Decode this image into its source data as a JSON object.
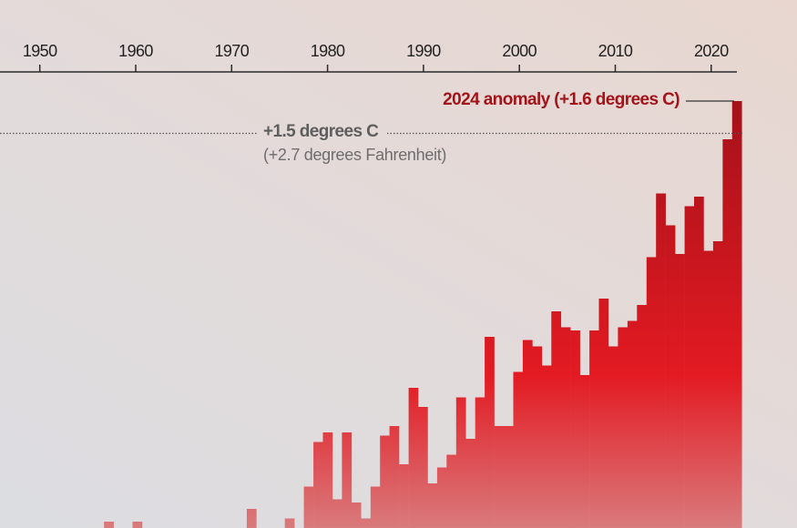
{
  "chart_data": {
    "type": "bar",
    "title": "",
    "xlabel": "",
    "ylabel": "",
    "x_ticks": [
      1950,
      1960,
      1970,
      1980,
      1990,
      2000,
      2010,
      2020
    ],
    "ylim": [
      0.26,
      1.92
    ],
    "grid": false,
    "legend": "none",
    "colors": {
      "bar_top": "#a3111a",
      "bar_mid": "#e31a22",
      "bar_bottom": "#d97a7c",
      "annotation_red": "#a3141a",
      "reference_gray": "#5e5e5e"
    },
    "x": [
      1958,
      1961,
      1969,
      1973,
      1977,
      1979,
      1980,
      1981,
      1982,
      1983,
      1984,
      1985,
      1986,
      1987,
      1988,
      1989,
      1990,
      1991,
      1992,
      1993,
      1994,
      1995,
      1996,
      1997,
      1998,
      1999,
      2000,
      2001,
      2002,
      2003,
      2004,
      2005,
      2006,
      2007,
      2008,
      2009,
      2010,
      2011,
      2012,
      2013,
      2014,
      2015,
      2016,
      2017,
      2018,
      2019,
      2020,
      2021,
      2022,
      2023,
      2024
    ],
    "values": [
      0.28,
      0.28,
      0.26,
      0.32,
      0.29,
      0.39,
      0.53,
      0.56,
      0.35,
      0.56,
      0.34,
      0.29,
      0.39,
      0.55,
      0.58,
      0.46,
      0.7,
      0.64,
      0.4,
      0.45,
      0.49,
      0.67,
      0.54,
      0.67,
      0.86,
      0.58,
      0.58,
      0.75,
      0.85,
      0.83,
      0.77,
      0.94,
      0.89,
      0.88,
      0.74,
      0.88,
      0.98,
      0.83,
      0.89,
      0.91,
      0.96,
      1.11,
      1.31,
      1.21,
      1.12,
      1.27,
      1.3,
      1.13,
      1.16,
      1.48,
      1.6
    ],
    "annotations": {
      "anomaly_2024": "2024 anomaly (+1.6 degrees C)",
      "threshold": "+1.5 degrees C",
      "threshold_f": "(+2.7 degrees Fahrenheit)",
      "threshold_value": 1.5
    }
  }
}
